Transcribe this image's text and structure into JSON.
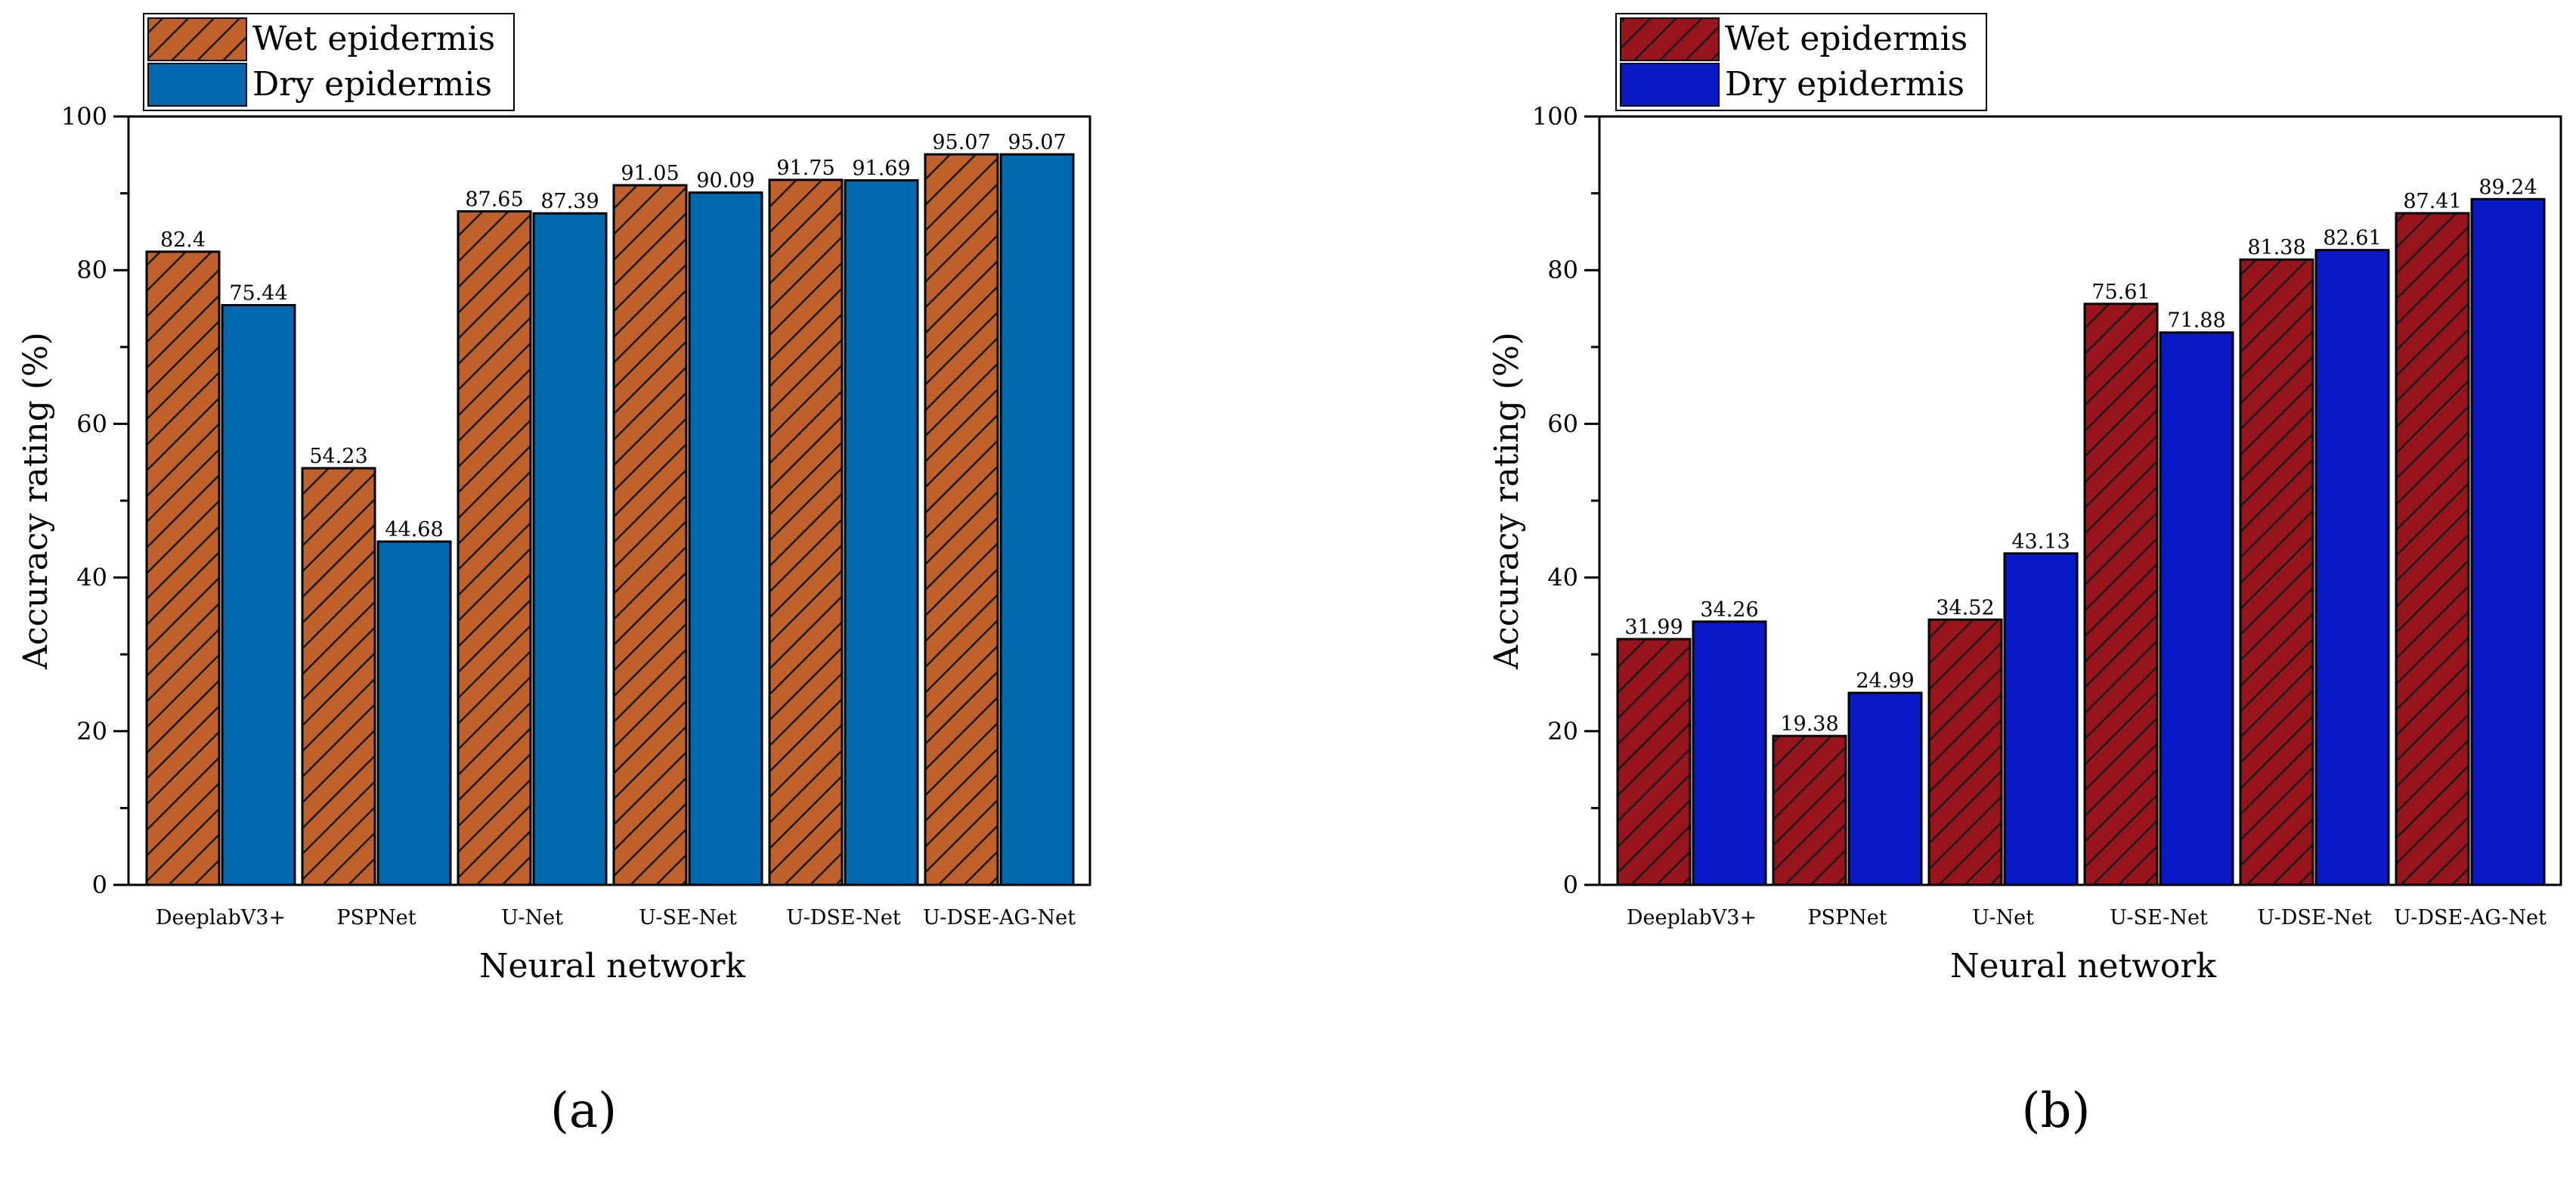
{
  "chart_data": [
    {
      "type": "bar",
      "panel_label": "(a)",
      "categories": [
        "DeeplabV3+",
        "PSPNet",
        "U-Net",
        "U-SE-Net",
        "U-DSE-Net",
        "U-DSE-AG-Net"
      ],
      "series": [
        {
          "name": "Wet epidermis",
          "values": [
            82.4,
            54.23,
            87.65,
            91.05,
            91.75,
            95.07
          ],
          "labels": [
            "82.4",
            "54.23",
            "87.65",
            "91.05",
            "91.75",
            "95.07"
          ],
          "color": "#c0602a",
          "hatch": true
        },
        {
          "name": "Dry epidermis",
          "values": [
            75.44,
            44.68,
            87.39,
            90.09,
            91.69,
            95.07
          ],
          "labels": [
            "75.44",
            "44.68",
            "87.39",
            "90.09",
            "91.69",
            "95.07"
          ],
          "color": "#0068ac",
          "hatch": false
        }
      ],
      "xlabel": "Neural network",
      "ylabel": "Accuracy rating (%)",
      "ylim": [
        0,
        100
      ],
      "yticks": [
        "0",
        "20",
        "40",
        "60",
        "80",
        "100"
      ],
      "legend": "top-left"
    },
    {
      "type": "bar",
      "panel_label": "(b)",
      "categories": [
        "DeeplabV3+",
        "PSPNet",
        "U-Net",
        "U-SE-Net",
        "U-DSE-Net",
        "U-DSE-AG-Net"
      ],
      "series": [
        {
          "name": "Wet epidermis",
          "values": [
            31.99,
            19.38,
            34.52,
            75.61,
            81.38,
            87.41
          ],
          "labels": [
            "31.99",
            "19.38",
            "34.52",
            "75.61",
            "81.38",
            "87.41"
          ],
          "color": "#98141c",
          "hatch": true
        },
        {
          "name": "Dry epidermis",
          "values": [
            34.26,
            24.99,
            43.13,
            71.88,
            82.61,
            89.24
          ],
          "labels": [
            "34.26",
            "24.99",
            "43.13",
            "71.88",
            "82.61",
            "89.24"
          ],
          "color": "#0a19c8",
          "hatch": false
        }
      ],
      "xlabel": "Neural network",
      "ylabel": "Accuracy rating (%)",
      "ylim": [
        0,
        100
      ],
      "yticks": [
        "0",
        "20",
        "40",
        "60",
        "80",
        "100"
      ],
      "legend": "top-left"
    }
  ]
}
